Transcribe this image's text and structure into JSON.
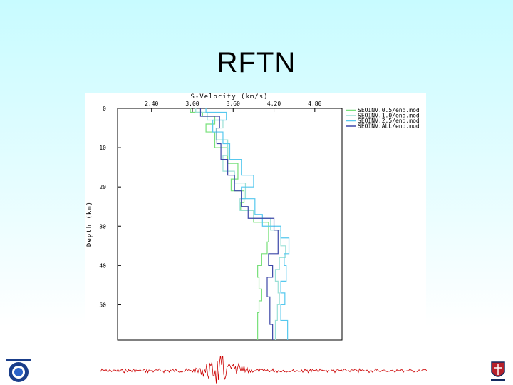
{
  "slide": {
    "title": "RFTN"
  },
  "chart_data": {
    "type": "line",
    "xlabel": "S-Velocity (km/s)",
    "ylabel": "Depth (km)",
    "xlim": [
      1.9,
      5.2
    ],
    "ylim": [
      0,
      59
    ],
    "x_axis_position": "top",
    "y_inverted": true,
    "grid": false,
    "legend_position": "right-top",
    "x_ticks": [
      2.4,
      3.0,
      3.6,
      4.2,
      4.8
    ],
    "x_tick_labels": [
      "2.40",
      "3.00",
      "3.60",
      "4.20",
      "4.80"
    ],
    "y_ticks": [
      0,
      10,
      20,
      30,
      40,
      50
    ],
    "y_tick_labels": [
      "0",
      "10",
      "20",
      "30",
      "40",
      "50"
    ],
    "series": [
      {
        "name": "SEOINV.0.5/end.mod",
        "color": "#77e07a",
        "v": [
          2.97,
          3.15,
          3.33,
          3.2,
          3.33,
          3.52,
          3.67,
          3.57,
          3.76,
          3.71,
          3.9,
          4.12,
          4.1,
          4.02,
          3.96,
          3.98,
          4.02,
          3.98,
          3.96
        ],
        "depth": [
          1,
          2,
          4,
          6,
          10,
          14,
          18,
          21,
          24,
          26,
          29,
          34,
          37,
          40,
          43,
          46,
          49,
          52,
          59
        ]
      },
      {
        "name": "SEOINV.1.0/end.mod",
        "color": "#9ae0d6",
        "v": [
          3.05,
          3.22,
          3.45,
          3.35,
          3.52,
          3.45,
          3.62,
          3.78,
          3.7,
          3.9,
          4.15,
          4.3,
          4.37,
          4.28,
          4.22,
          4.26,
          4.28,
          4.25,
          4.22
        ],
        "depth": [
          1,
          3,
          5,
          8,
          12,
          16,
          19,
          23,
          26,
          28,
          31,
          35,
          38,
          41,
          44,
          47,
          50,
          54,
          59
        ]
      },
      {
        "name": "SEOINV.2.5/end.mod",
        "color": "#56c8ee",
        "v": [
          3.2,
          3.5,
          3.3,
          3.45,
          3.55,
          3.72,
          3.9,
          3.72,
          3.92,
          4.03,
          4.3,
          4.42,
          4.35,
          4.38,
          4.3,
          4.36,
          4.3,
          4.4
        ],
        "depth": [
          1,
          3,
          6,
          9,
          13,
          17,
          20,
          23,
          27,
          30,
          33,
          37,
          40,
          44,
          47,
          50,
          54,
          59
        ]
      },
      {
        "name": "SEOINV.ALL/end.mod",
        "color": "#3c47a8",
        "v": [
          3.12,
          3.4,
          3.36,
          3.42,
          3.52,
          3.62,
          3.72,
          3.82,
          4.2,
          4.26,
          4.12,
          4.18,
          4.1,
          4.14,
          4.18
        ],
        "depth": [
          2,
          5,
          9,
          13,
          17,
          21,
          25,
          28,
          31,
          37,
          40,
          43,
          48,
          55,
          59
        ]
      }
    ]
  },
  "decorations": {
    "left_logo_icon": "university-logo-icon",
    "right_logo_icon": "crest-logo-icon",
    "seismogram_icon": "seismogram-trace-icon",
    "seismogram_color": "#cc0000"
  }
}
